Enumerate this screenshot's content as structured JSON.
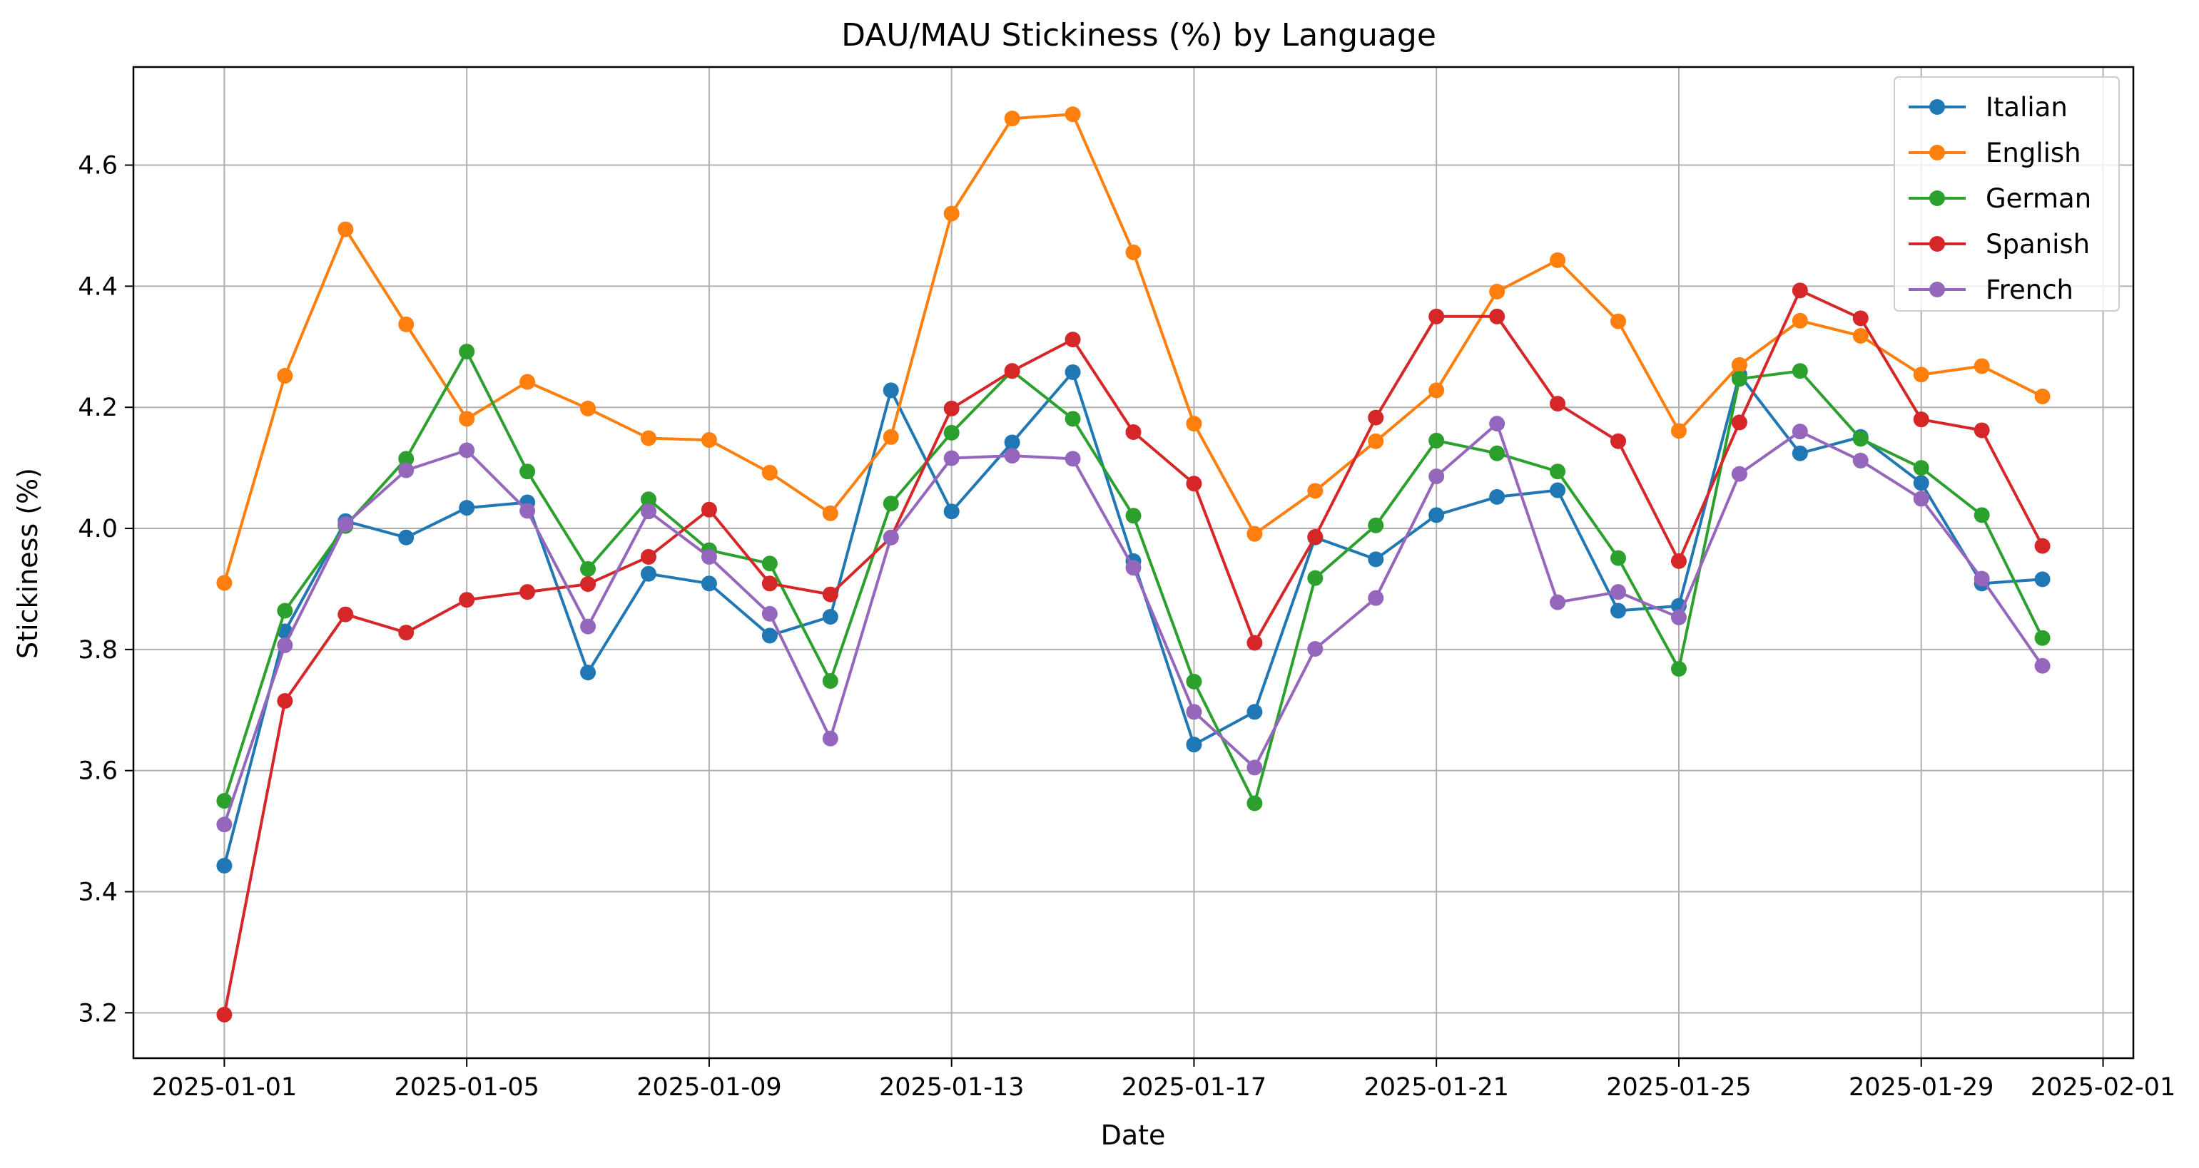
{
  "chart_data": {
    "type": "line",
    "title": "DAU/MAU Stickiness (%) by Language",
    "xlabel": "Date",
    "ylabel": "Stickiness (%)",
    "x": [
      "2025-01-01",
      "2025-01-02",
      "2025-01-03",
      "2025-01-04",
      "2025-01-05",
      "2025-01-06",
      "2025-01-07",
      "2025-01-08",
      "2025-01-09",
      "2025-01-10",
      "2025-01-11",
      "2025-01-12",
      "2025-01-13",
      "2025-01-14",
      "2025-01-15",
      "2025-01-16",
      "2025-01-17",
      "2025-01-18",
      "2025-01-19",
      "2025-01-20",
      "2025-01-21",
      "2025-01-22",
      "2025-01-23",
      "2025-01-24",
      "2025-01-25",
      "2025-01-26",
      "2025-01-27",
      "2025-01-28",
      "2025-01-29",
      "2025-01-30",
      "2025-01-31"
    ],
    "x_ticks": [
      "2025-01-01",
      "2025-01-05",
      "2025-01-09",
      "2025-01-13",
      "2025-01-17",
      "2025-01-21",
      "2025-01-25",
      "2025-01-29",
      "2025-02-01"
    ],
    "xlim": [
      "2024-12-30.5",
      "2025-02-01.5"
    ],
    "y_ticks": [
      "3.2",
      "3.4",
      "3.6",
      "3.8",
      "4.0",
      "4.2",
      "4.4",
      "4.6"
    ],
    "ylim": [
      3.125,
      4.762
    ],
    "grid": true,
    "legend_position": "top-right",
    "series": [
      {
        "name": "Italian",
        "color": "#1f77b4",
        "values": [
          3.443,
          3.83,
          4.012,
          3.985,
          4.034,
          4.043,
          3.762,
          3.925,
          3.909,
          3.823,
          3.854,
          4.228,
          4.028,
          4.142,
          4.258,
          3.946,
          3.643,
          3.697,
          3.985,
          3.949,
          4.022,
          4.052,
          4.063,
          3.864,
          3.872,
          4.254,
          4.124,
          4.151,
          4.075,
          3.909,
          3.916
        ]
      },
      {
        "name": "English",
        "color": "#ff7f0e",
        "values": [
          3.91,
          4.252,
          4.494,
          4.337,
          4.181,
          4.242,
          4.198,
          4.149,
          4.146,
          4.092,
          4.025,
          4.151,
          4.52,
          4.677,
          4.684,
          4.456,
          4.173,
          3.991,
          4.062,
          4.144,
          4.228,
          4.391,
          4.443,
          4.342,
          4.161,
          4.27,
          4.343,
          4.318,
          4.254,
          4.268,
          4.218
        ]
      },
      {
        "name": "German",
        "color": "#2ca02c",
        "values": [
          3.55,
          3.864,
          4.004,
          4.115,
          4.292,
          4.094,
          3.933,
          4.048,
          3.964,
          3.942,
          3.748,
          4.041,
          4.158,
          4.26,
          4.181,
          4.021,
          3.747,
          3.546,
          3.918,
          4.005,
          4.145,
          4.124,
          4.094,
          3.951,
          3.768,
          4.247,
          4.26,
          4.148,
          4.1,
          4.022,
          3.819
        ]
      },
      {
        "name": "Spanish",
        "color": "#d62728",
        "values": [
          3.197,
          3.715,
          3.858,
          3.828,
          3.882,
          3.895,
          3.908,
          3.953,
          4.031,
          3.909,
          3.891,
          3.985,
          4.198,
          4.26,
          4.312,
          4.159,
          4.074,
          3.811,
          3.986,
          4.183,
          4.35,
          4.35,
          4.206,
          4.144,
          3.946,
          4.175,
          4.393,
          4.347,
          4.18,
          4.162,
          3.971
        ]
      },
      {
        "name": "French",
        "color": "#9467bd",
        "values": [
          3.511,
          3.807,
          4.007,
          4.096,
          4.129,
          4.029,
          3.838,
          4.028,
          3.953,
          3.859,
          3.653,
          3.985,
          4.116,
          4.12,
          4.115,
          3.935,
          3.697,
          3.605,
          3.801,
          3.885,
          4.086,
          4.173,
          3.878,
          3.895,
          3.853,
          4.09,
          4.16,
          4.112,
          4.049,
          3.917,
          3.773
        ]
      }
    ]
  }
}
